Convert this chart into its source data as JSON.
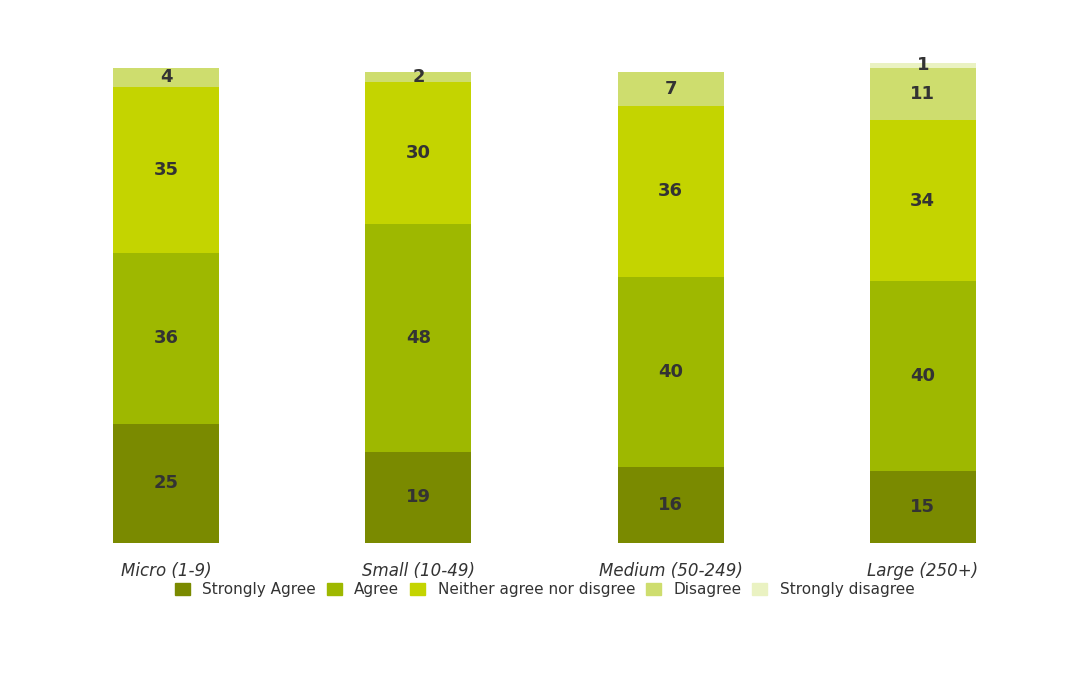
{
  "categories": [
    "Micro (1-9)",
    "Small (10-49)",
    "Medium (50-249)",
    "Large (250+)"
  ],
  "series": [
    {
      "label": "Strongly Agree",
      "values": [
        25,
        19,
        16,
        15
      ],
      "color": "#7a8a00"
    },
    {
      "label": "Agree",
      "values": [
        36,
        48,
        40,
        40
      ],
      "color": "#9eb800"
    },
    {
      "label": "Neither agree nor disgree",
      "values": [
        35,
        30,
        36,
        34
      ],
      "color": "#c4d400"
    },
    {
      "label": "Disagree",
      "values": [
        4,
        2,
        7,
        11
      ],
      "color": "#cedd6e"
    },
    {
      "label": "Strongly disagree",
      "values": [
        0,
        0,
        0,
        1
      ],
      "color": "#eaf2c2"
    }
  ],
  "bar_width": 0.42,
  "figsize": [
    10.89,
    6.79
  ],
  "dpi": 100,
  "background_color": "#ffffff",
  "text_color": "#333333",
  "font_size_labels": 13,
  "font_size_legend": 11,
  "font_size_axis": 12,
  "ylim_factor": 1.1
}
